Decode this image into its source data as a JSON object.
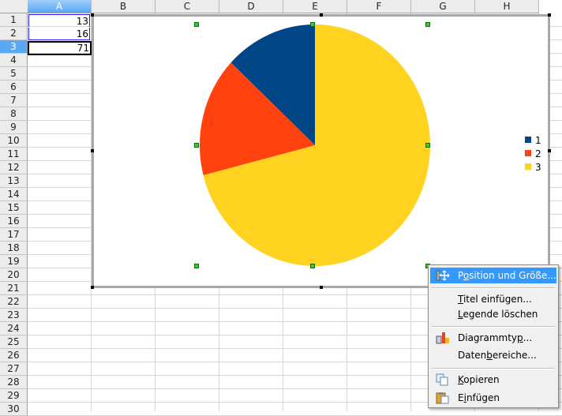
{
  "columns": [
    "A",
    "B",
    "C",
    "D",
    "E",
    "F",
    "G",
    "H"
  ],
  "rows": [
    "1",
    "2",
    "3",
    "4",
    "5",
    "6",
    "7",
    "8",
    "9",
    "10",
    "11",
    "12",
    "13",
    "14",
    "15",
    "16",
    "17",
    "18",
    "19",
    "20",
    "21",
    "22",
    "23",
    "24",
    "25",
    "26",
    "27",
    "28",
    "29",
    "30"
  ],
  "cells": {
    "A1": "13",
    "A2": "16",
    "A3": "71"
  },
  "colors": {
    "series1": "#004586",
    "series2": "#ff420e",
    "series3": "#ffd320",
    "selection": "#3399ff"
  },
  "chart_data": {
    "type": "pie",
    "categories": [
      "1",
      "2",
      "3"
    ],
    "values": [
      13,
      16,
      71
    ],
    "colors": [
      "#004586",
      "#ff420e",
      "#ffd320"
    ],
    "legend": "right"
  },
  "context_menu": {
    "items": [
      {
        "pre": "P",
        "u": "o",
        "post": "sition und Größe...",
        "icon": "position-size-icon"
      },
      {
        "pre": "",
        "u": "T",
        "post": "itel einfügen...",
        "icon": ""
      },
      {
        "pre": "",
        "u": "L",
        "post": "egende löschen",
        "icon": ""
      },
      {
        "pre": "Diagrammty",
        "u": "p",
        "post": "...",
        "icon": "chart-type-icon"
      },
      {
        "pre": "Daten",
        "u": "b",
        "post": "ereiche...",
        "icon": ""
      },
      {
        "pre": "",
        "u": "K",
        "post": "opieren",
        "icon": "copy-icon"
      },
      {
        "pre": "E",
        "u": "i",
        "post": "nfügen",
        "icon": "paste-icon"
      }
    ]
  }
}
